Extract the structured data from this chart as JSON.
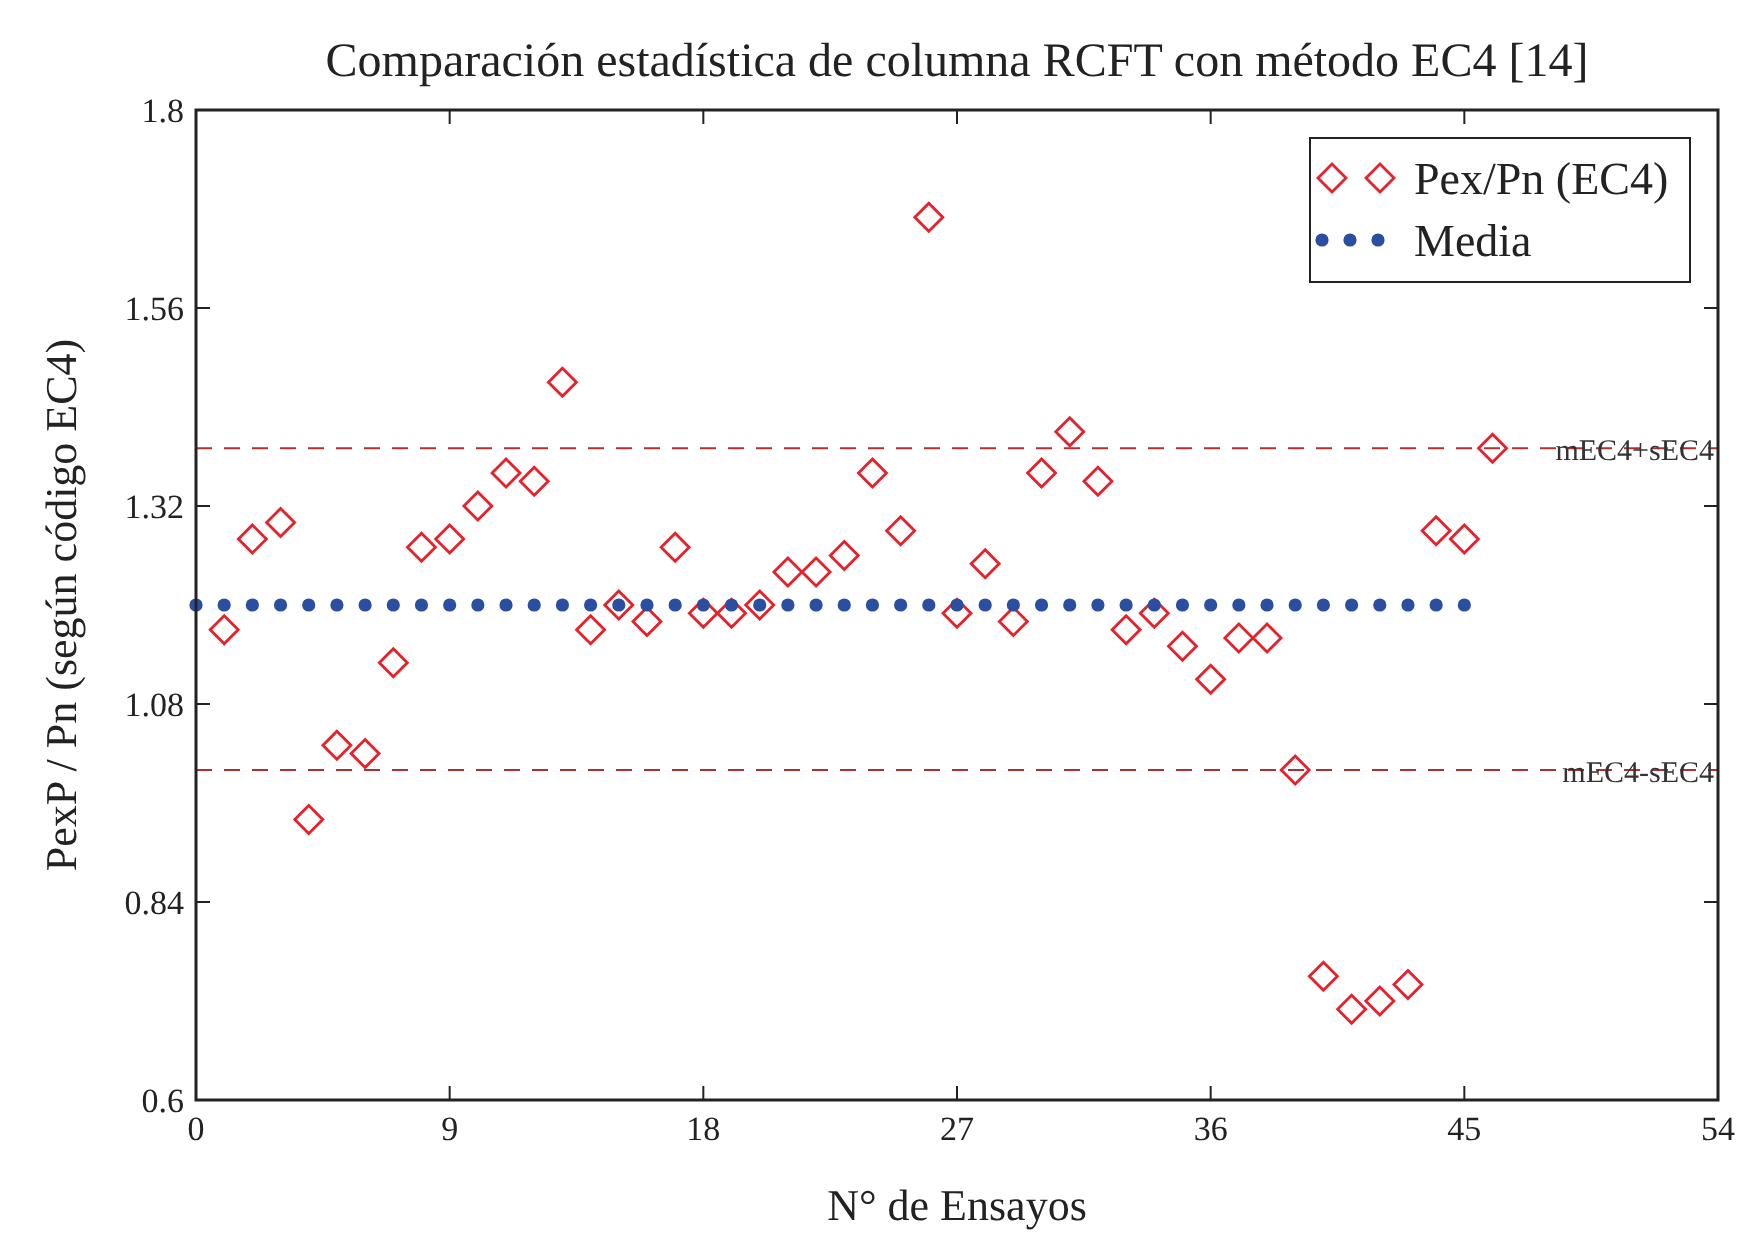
{
  "chart_data": {
    "type": "scatter",
    "title": "Comparación estadística de columna RCFT con método EC4 [14]",
    "xlabel": "N° de Ensayos",
    "ylabel": "PexP / Pn (según código EC4)",
    "series": [
      {
        "name": "Pex/Pn (EC4)",
        "marker": "diamond",
        "color": "#e8202a",
        "x": [
          1,
          2,
          3,
          4,
          5,
          6,
          7,
          8,
          9,
          10,
          11,
          12,
          13,
          14,
          15,
          16,
          17,
          18,
          19,
          20,
          21,
          22,
          23,
          24,
          25,
          26,
          27,
          28,
          29,
          30,
          31,
          32,
          33,
          34,
          35,
          36,
          37,
          38,
          39,
          40,
          41,
          42,
          43,
          44,
          45,
          46
        ],
        "values": [
          1.17,
          1.28,
          1.3,
          0.94,
          1.03,
          1.02,
          1.13,
          1.27,
          1.28,
          1.32,
          1.36,
          1.35,
          1.47,
          1.17,
          1.2,
          1.18,
          1.27,
          1.19,
          1.19,
          1.2,
          1.24,
          1.24,
          1.26,
          1.36,
          1.29,
          1.67,
          1.19,
          1.25,
          1.18,
          1.36,
          1.41,
          1.35,
          1.17,
          1.19,
          1.15,
          1.11,
          1.16,
          1.16,
          1.0,
          0.75,
          0.71,
          0.72,
          0.74,
          1.29,
          1.28,
          1.39
        ]
      },
      {
        "name": "Media",
        "marker": "circle",
        "color": "#2a4fa0",
        "x": [
          0,
          1,
          2,
          3,
          4,
          5,
          6,
          7,
          8,
          9,
          10,
          11,
          12,
          13,
          14,
          15,
          16,
          17,
          18,
          19,
          20,
          21,
          22,
          23,
          24,
          25,
          26,
          27,
          28,
          29,
          30,
          31,
          32,
          33,
          34,
          35,
          36,
          37,
          38,
          39,
          40,
          41,
          42,
          43,
          44,
          45
        ],
        "values": [
          1.2,
          1.2,
          1.2,
          1.2,
          1.2,
          1.2,
          1.2,
          1.2,
          1.2,
          1.2,
          1.2,
          1.2,
          1.2,
          1.2,
          1.2,
          1.2,
          1.2,
          1.2,
          1.2,
          1.2,
          1.2,
          1.2,
          1.2,
          1.2,
          1.2,
          1.2,
          1.2,
          1.2,
          1.2,
          1.2,
          1.2,
          1.2,
          1.2,
          1.2,
          1.2,
          1.2,
          1.2,
          1.2,
          1.2,
          1.2,
          1.2,
          1.2,
          1.2,
          1.2,
          1.2,
          1.2
        ]
      }
    ],
    "ref_lines": [
      {
        "axis": "y",
        "value": 1.39,
        "label": "mEC4+sEC4",
        "color": "#b03030",
        "line_style": "dashed"
      },
      {
        "axis": "y",
        "value": 1.0,
        "label": "mEC4-sEC4",
        "color": "#b03030",
        "line_style": "dashed"
      }
    ],
    "xlim": [
      0,
      54
    ],
    "xticks": [
      0,
      9,
      18,
      27,
      36,
      45,
      54
    ],
    "ylim": [
      0.6,
      1.8
    ],
    "yticks": [
      0.6,
      0.84,
      1.08,
      1.32,
      1.56,
      1.8
    ],
    "grid": false,
    "legend": "top right"
  }
}
